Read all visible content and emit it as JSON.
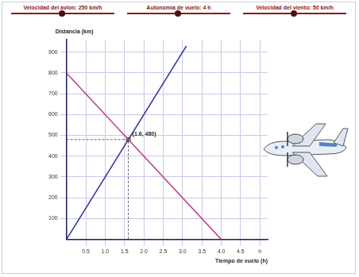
{
  "controls": [
    {
      "label": "Velocidad del avión: 250 km/h"
    },
    {
      "label": "Autonomía de vuelo: 4 h"
    },
    {
      "label": "Velocidad del viento: 50 km/h"
    }
  ],
  "chart_data": {
    "type": "line",
    "y_label": "Distancia (km)",
    "x_label": "Tiempo de vuelo (h)",
    "series": [
      {
        "color": "#3535a0",
        "x": [
          0,
          3.1
        ],
        "values": [
          0,
          930
        ]
      },
      {
        "color": "#c2458a",
        "x": [
          0,
          4
        ],
        "values": [
          800,
          0
        ]
      }
    ],
    "xlim": [
      0,
      5.2
    ],
    "ylim": [
      0,
      960
    ],
    "xticks": [
      0.5,
      {
        "value": 1,
        "label": "1.0"
      },
      1.5,
      {
        "value": 2,
        "label": "2.0"
      },
      2.5,
      {
        "value": 3,
        "label": "3.0"
      },
      3.5,
      {
        "value": 4,
        "label": "4.0"
      },
      4.5,
      {
        "value": 5,
        "label": "h"
      }
    ],
    "yticks": [
      100,
      200,
      300,
      400,
      500,
      600,
      700,
      800,
      900
    ],
    "grid": true,
    "annotations": [
      {
        "x": 1.6,
        "y": 480,
        "label": "(1.6, 480)",
        "color": "#f0e040"
      }
    ]
  }
}
